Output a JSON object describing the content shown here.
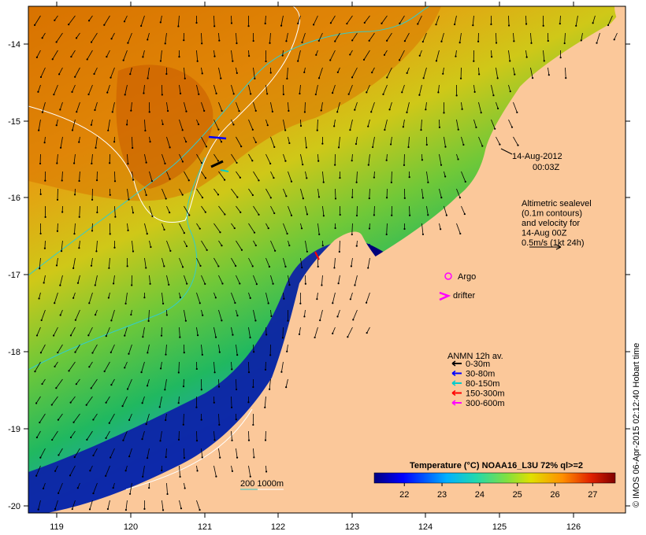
{
  "map": {
    "date_line1": "14-Aug-2012",
    "date_line2": "00:03Z",
    "altimetry_lines": [
      "Altimetric sealevel",
      "(0.1m contours)",
      "and velocity for",
      "14-Aug 00Z",
      "0.5m/s (1kt 24h)"
    ],
    "argo_label": "Argo",
    "drifter_label": "drifter",
    "anmn_title": "ANMN 12h av.",
    "anmn_items": [
      {
        "label": "0-30m",
        "color": "#000000"
      },
      {
        "label": "30-80m",
        "color": "#0000ff"
      },
      {
        "label": "80-150m",
        "color": "#00cccc"
      },
      {
        "label": "150-300m",
        "color": "#ff0000"
      },
      {
        "label": "300-600m",
        "color": "#ff00ff"
      }
    ],
    "scale_label": "200  1000m",
    "credit": "© IMOS 06-Apr-2015 02:12:40 Hobart time",
    "lon_ticks": [
      "119",
      "120",
      "121",
      "122",
      "123",
      "124",
      "125",
      "126"
    ],
    "lat_ticks": [
      "-14",
      "-15",
      "-16",
      "-17",
      "-18",
      "-19",
      "-20"
    ],
    "colorbar": {
      "title": "Temperature (°C) NOAA16_L3U 72% ql>=2",
      "ticks": [
        "22",
        "23",
        "24",
        "25",
        "26",
        "27"
      ],
      "range": [
        21.2,
        27.6
      ]
    },
    "colors": {
      "land": "#fbc89a",
      "warm": "#e07800",
      "cool": "#00009a"
    }
  }
}
